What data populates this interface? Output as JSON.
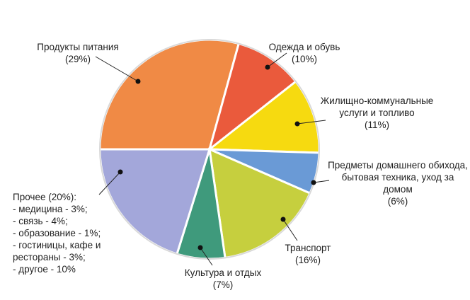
{
  "chart_data": {
    "type": "pie",
    "categories": [
      "Продукты питания",
      "Одежда и обувь",
      "Жилищно-коммунальные услуги и топливо",
      "Предметы домашнего обихода, бытовая техника, уход за домом",
      "Транспорт",
      "Культура и отдых",
      "Прочее"
    ],
    "values": [
      29,
      10,
      11,
      6,
      16,
      7,
      20
    ],
    "value_labels": [
      "(29%)",
      "(10%)",
      "(11%)",
      "(6%)",
      "(16%)",
      "(7%)",
      "(20%):"
    ],
    "colors": [
      "#f08a45",
      "#ea5a3c",
      "#f6da10",
      "#6a9ad6",
      "#c6cf3e",
      "#3f9a7c",
      "#a3a7da"
    ],
    "annotations": [
      "- медицина - 3%;",
      "- связь - 4%;",
      "- образование - 1%;",
      "- гостиницы, кафе и рестораны - 3%;",
      "- другое - 10%"
    ]
  }
}
